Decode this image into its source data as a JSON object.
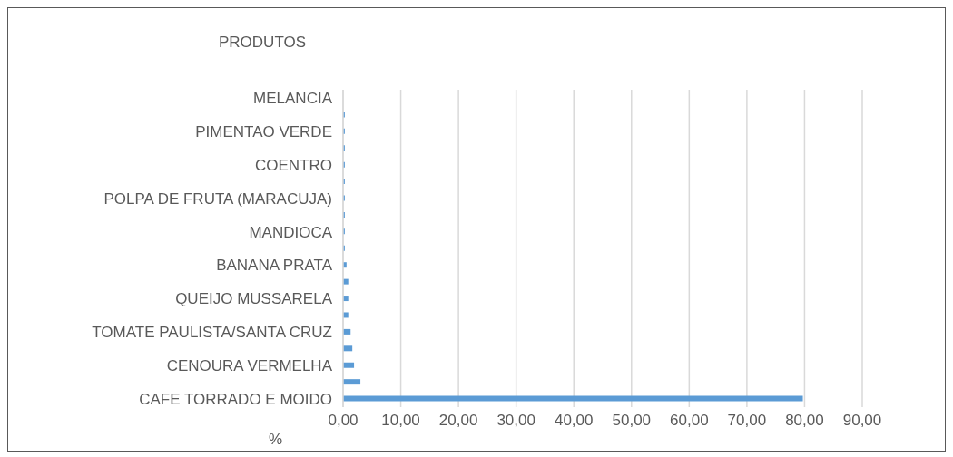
{
  "chart_data": {
    "type": "bar",
    "orientation": "horizontal",
    "ylabel": "PRODUTOS",
    "xlabel": "%",
    "categories": [
      "MELANCIA",
      null,
      "PIMENTAO VERDE",
      null,
      "COENTRO",
      null,
      "POLPA DE FRUTA (MARACUJA)",
      null,
      "MANDIOCA",
      null,
      "BANANA PRATA",
      null,
      "QUEIJO MUSSARELA",
      null,
      "TOMATE PAULISTA/SANTA CRUZ",
      null,
      "CENOURA VERMELHA",
      null,
      "CAFE TORRADO E MOIDO"
    ],
    "values": [
      0,
      0.3,
      0.3,
      0.3,
      0.3,
      0.3,
      0.3,
      0.3,
      0.3,
      0.3,
      0.6,
      0.9,
      0.9,
      0.9,
      1.3,
      1.6,
      1.9,
      3,
      79.7
    ],
    "color": "#5b9bd5",
    "xlim": [
      0,
      90
    ],
    "xticks": [
      {
        "value": 0,
        "label": "0,00"
      },
      {
        "value": 10,
        "label": "10,00"
      },
      {
        "value": 20,
        "label": "20,00"
      },
      {
        "value": 30,
        "label": "30,00"
      },
      {
        "value": 40,
        "label": "40,00"
      },
      {
        "value": 50,
        "label": "50,00"
      },
      {
        "value": 60,
        "label": "60,00"
      },
      {
        "value": 70,
        "label": "70,00"
      },
      {
        "value": 80,
        "label": "80,00"
      },
      {
        "value": 90,
        "label": "90,00"
      }
    ],
    "grid": "x"
  }
}
